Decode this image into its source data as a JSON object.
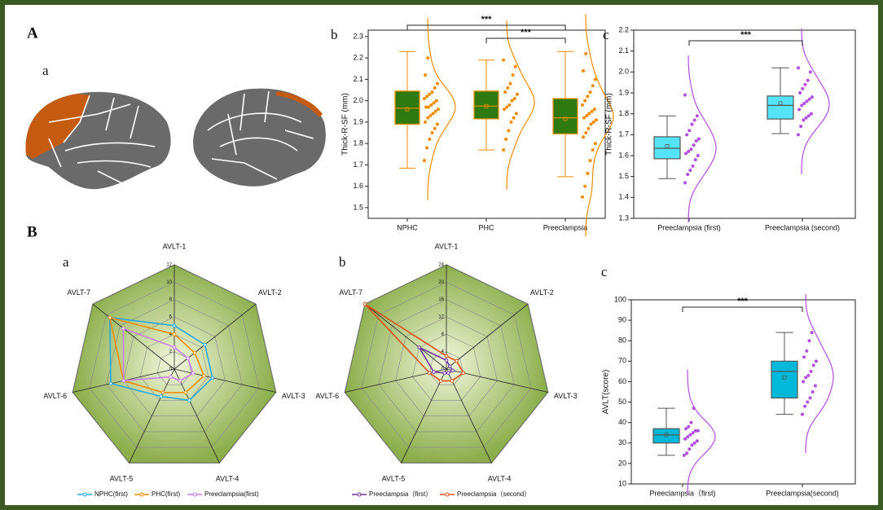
{
  "panel_labels": [
    "A",
    "a",
    "b",
    "c",
    "B",
    "a",
    "b",
    "c"
  ],
  "chart_data": [
    {
      "type": "box",
      "y_label": "Thick-R-SF (mm)",
      "categories": [
        "NPHC",
        "PHC",
        "Preeclampsia"
      ],
      "ylim": [
        1.45,
        2.33
      ],
      "yticks": [
        1.5,
        1.6,
        1.7,
        1.8,
        1.9,
        {
          "value": 2,
          "label": "2.0"
        },
        2.1,
        2.2,
        2.3
      ],
      "box_color": "#2e7a10",
      "edge_color": "#f28c00",
      "point_color": "#f28c00",
      "boxes": [
        {
          "min": 1.685,
          "q1": 1.89,
          "median": 1.965,
          "q3": 2.045,
          "max": 2.23,
          "mean": 1.96,
          "points": [
            1.72,
            1.78,
            1.82,
            1.85,
            1.87,
            1.89,
            1.9,
            1.92,
            1.93,
            1.94,
            1.95,
            1.96,
            1.97,
            1.97,
            1.98,
            1.99,
            2.0,
            2.01,
            2.02,
            2.03,
            2.04,
            2.06,
            2.08,
            2.12,
            2.2
          ]
        },
        {
          "min": 1.77,
          "q1": 1.915,
          "median": 1.975,
          "q3": 2.045,
          "max": 2.19,
          "mean": 1.975,
          "points": [
            1.77,
            1.82,
            1.86,
            1.9,
            1.92,
            1.94,
            1.96,
            1.97,
            1.98,
            2.0,
            2.01,
            2.03,
            2.04,
            2.06,
            2.08,
            2.12,
            2.16,
            2.19
          ]
        },
        {
          "min": 1.645,
          "q1": 1.845,
          "median": 1.92,
          "q3": 2.01,
          "max": 2.23,
          "mean": 1.915,
          "points": [
            1.55,
            1.6,
            1.66,
            1.72,
            1.77,
            1.8,
            1.83,
            1.85,
            1.87,
            1.89,
            1.9,
            1.91,
            1.92,
            1.93,
            1.94,
            1.95,
            1.96,
            1.98,
            2.0,
            2.02,
            2.04,
            2.07,
            2.1,
            2.14,
            2.22
          ]
        }
      ],
      "significance": [
        {
          "label": "***",
          "between": [
            0,
            2
          ]
        },
        {
          "label": "***",
          "between": [
            1,
            2
          ]
        }
      ]
    },
    {
      "type": "box",
      "y_label": "Thick-R-SF (mm)",
      "categories": [
        "Preeclampsia (first)",
        "Preeclampsia (second)"
      ],
      "ylim": [
        1.3,
        2.2
      ],
      "yticks": [
        1.3,
        1.4,
        1.5,
        1.6,
        1.7,
        1.8,
        1.9,
        {
          "value": 2,
          "label": "2.0"
        },
        2.1,
        2.2
      ],
      "box_color": "#55e4f7",
      "edge_color": "#555555",
      "point_color": "#b04fe0",
      "boxes": [
        {
          "min": 1.49,
          "q1": 1.585,
          "median": 1.635,
          "q3": 1.69,
          "max": 1.79,
          "mean": 1.645,
          "points": [
            1.47,
            1.51,
            1.53,
            1.55,
            1.58,
            1.6,
            1.61,
            1.62,
            1.63,
            1.65,
            1.67,
            1.68,
            1.7,
            1.72,
            1.75,
            1.77,
            1.79,
            1.89
          ]
        },
        {
          "min": 1.705,
          "q1": 1.775,
          "median": 1.84,
          "q3": 1.885,
          "max": 2.02,
          "mean": 1.85,
          "points": [
            1.7,
            1.74,
            1.77,
            1.78,
            1.79,
            1.8,
            1.82,
            1.84,
            1.85,
            1.86,
            1.87,
            1.88,
            1.9,
            1.92,
            1.94,
            1.96,
            2.0,
            2.02
          ]
        }
      ],
      "significance": [
        {
          "label": "***",
          "between": [
            0,
            1
          ]
        }
      ]
    },
    {
      "type": "radar",
      "axes": [
        "AVLT-1",
        "AVLT-2",
        "AVLT-3",
        "AVLT-4",
        "AVLT-5",
        "AVLT-6",
        "AVLT-7"
      ],
      "rlim": [
        0,
        12
      ],
      "rticks": [
        0,
        2,
        4,
        6,
        8,
        10,
        12
      ],
      "series": [
        {
          "name": "NPHC(first)",
          "color": "#29a8e0",
          "values": [
            5,
            4.5,
            4.5,
            4,
            3.5,
            7.5,
            9.5
          ]
        },
        {
          "name": "PHC(first)",
          "color": "#f28c00",
          "values": [
            4,
            3,
            3.5,
            3,
            3,
            6,
            9.5
          ]
        },
        {
          "name": "Preeclampsia(first)",
          "color": "#c77ee8",
          "values": [
            2.5,
            2,
            2.2,
            1.5,
            1,
            6,
            7.5
          ]
        }
      ]
    },
    {
      "type": "radar",
      "axes": [
        "AVLT-1",
        "AVLT-2",
        "AVLT-3",
        "AVLT-4",
        "AVLT-5",
        "AVLT-6",
        "AVLT-7"
      ],
      "rlim": [
        0,
        24
      ],
      "rticks": [
        0,
        4,
        8,
        12,
        16,
        20,
        24
      ],
      "series": [
        {
          "name": "Preeclampsia（first）",
          "color": "#7030a0",
          "values": [
            2,
            1,
            1.5,
            1,
            1,
            3,
            8
          ]
        },
        {
          "name": "Preeclampsia（second）",
          "color": "#d9531e",
          "values": [
            3,
            3,
            4,
            3,
            3,
            4,
            24
          ]
        }
      ]
    },
    {
      "type": "box",
      "y_label": "AVLT(score)",
      "categories": [
        "Preeclampsia（first)",
        "Preeclampsia(second)"
      ],
      "ylim": [
        10,
        100
      ],
      "yticks": [
        10,
        20,
        30,
        40,
        50,
        60,
        70,
        80,
        90,
        100
      ],
      "box_color": "#00b8d9",
      "edge_color": "#555555",
      "point_color": "#b04fe0",
      "boxes": [
        {
          "min": 24,
          "q1": 30,
          "median": 34,
          "q3": 37,
          "max": 47,
          "mean": 34,
          "points": [
            24,
            25,
            27,
            29,
            30,
            31,
            32,
            33,
            34,
            35,
            36,
            36,
            37,
            38,
            40,
            47
          ]
        },
        {
          "min": 44,
          "q1": 52,
          "median": 65,
          "q3": 70,
          "max": 84,
          "mean": 62,
          "points": [
            44,
            48,
            50,
            52,
            55,
            58,
            60,
            62,
            63,
            65,
            68,
            70,
            72,
            75,
            80,
            84
          ]
        }
      ],
      "significance": [
        {
          "label": "***",
          "between": [
            0,
            1
          ]
        }
      ]
    }
  ]
}
